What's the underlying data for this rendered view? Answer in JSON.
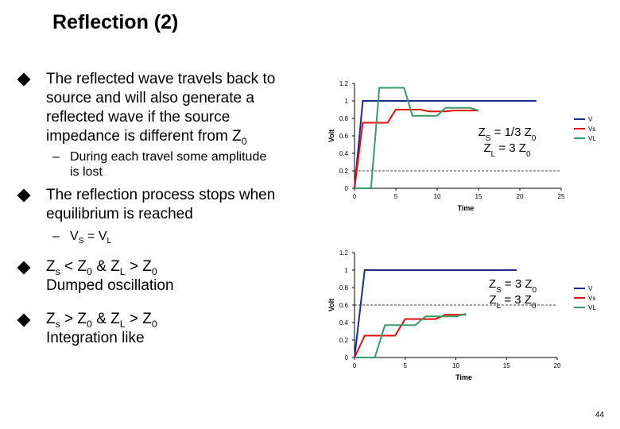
{
  "slide": {
    "title": "Reflection (2)",
    "page_number": "44",
    "bullets": {
      "b1": {
        "text": "The reflected wave travels back to source and will also generate a reflected wave if the source impedance is different from Z",
        "sub0": "0"
      },
      "b1_sub": {
        "line1": "During each travel some amplitude",
        "line2": "is lost"
      },
      "b2": {
        "text": "The reflection process stops when equilibrium is reached"
      },
      "b2_sub": {
        "v": "V",
        "s": "S",
        "eq": " = V",
        "l": "L"
      },
      "b3": {
        "line1_a": "Z",
        "line1_b": "s",
        "line1_c": " < Z",
        "line1_d": "0",
        "line1_e": " & Z",
        "line1_f": "L",
        "line1_g": " > Z",
        "line1_h": "0",
        "line2": "Dumped oscillation"
      },
      "b4": {
        "line1_a": "Z",
        "line1_b": "s",
        "line1_c": "  > Z",
        "line1_d": "0",
        "line1_e": " & Z",
        "line1_f": "L",
        "line1_g": " > Z",
        "line1_h": "0",
        "line2": "Integration like"
      }
    }
  },
  "chart_data": [
    {
      "type": "line",
      "xlabel": "Time",
      "ylabel": "Volt",
      "xlim": [
        0,
        25
      ],
      "ylim": [
        0,
        1.2
      ],
      "x_ticks": [
        "0",
        "5",
        "10",
        "15",
        "20",
        "25"
      ],
      "y_ticks": [
        "0",
        "0.2",
        "0.4",
        "0.6",
        "0.8",
        "1",
        "1.2"
      ],
      "dashed_ref": 0.2,
      "annotation": {
        "l1a": "Z",
        "l1b": "S",
        "l1c": " = 1/3 Z",
        "l1d": "0",
        "l2a": "Z",
        "l2b": "L",
        "l2c": " = 3 Z",
        "l2d": "0"
      },
      "legend": [
        "V",
        "Vs",
        "VL"
      ],
      "colors": [
        "#1f2a8a",
        "#e01010",
        "#3a9a6a"
      ],
      "series": [
        {
          "x": [
            0,
            1,
            22
          ],
          "y": [
            0,
            1,
            1
          ]
        },
        {
          "x": [
            0,
            1,
            4,
            5,
            8,
            9,
            11,
            12,
            15
          ],
          "y": [
            0,
            0.75,
            0.75,
            0.9,
            0.9,
            0.88,
            0.88,
            0.89,
            0.89
          ]
        },
        {
          "x": [
            0,
            2,
            3,
            6,
            7,
            10,
            11,
            14,
            15
          ],
          "y": [
            0,
            0,
            1.15,
            1.15,
            0.83,
            0.83,
            0.92,
            0.92,
            0.89
          ]
        }
      ]
    },
    {
      "type": "line",
      "xlabel": "Time",
      "ylabel": "Volt",
      "xlim": [
        0,
        20
      ],
      "ylim": [
        0,
        1.2
      ],
      "x_ticks": [
        "0",
        "5",
        "10",
        "15",
        "20"
      ],
      "y_ticks": [
        "0",
        "0.2",
        "0.4",
        "0.6",
        "0.8",
        "1",
        "1.2"
      ],
      "dashed_ref": 0.6,
      "annotation": {
        "l1a": "Z",
        "l1b": "S",
        "l1c": " = 3 Z",
        "l1d": "0",
        "l2a": "Z",
        "l2b": "L",
        "l2c": " = 3 Z",
        "l2d": "0"
      },
      "legend": [
        "V",
        "Vs",
        "VL"
      ],
      "colors": [
        "#1f2a8a",
        "#e01010",
        "#3a9a6a"
      ],
      "series": [
        {
          "x": [
            0,
            1,
            16
          ],
          "y": [
            0,
            1,
            1
          ]
        },
        {
          "x": [
            0,
            1,
            4,
            5,
            8,
            9,
            11
          ],
          "y": [
            0,
            0.25,
            0.25,
            0.44,
            0.44,
            0.49,
            0.49
          ]
        },
        {
          "x": [
            0,
            2,
            3,
            6,
            7,
            10,
            11
          ],
          "y": [
            0,
            0,
            0.37,
            0.37,
            0.47,
            0.47,
            0.5
          ]
        }
      ]
    }
  ]
}
